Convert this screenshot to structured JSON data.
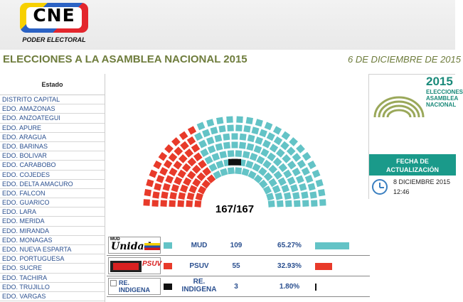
{
  "header": {
    "logo_text": "CNE",
    "logo_subtitle": "PODER ELECTORAL",
    "title": "ELECCIONES A LA ASAMBLEA NACIONAL 2015",
    "date": "6 DE DICIEMBRE DE 2015"
  },
  "states": {
    "heading": "Estado",
    "items": [
      "DISTRITO CAPITAL",
      "EDO. AMAZONAS",
      "EDO. ANZOATEGUI",
      "EDO. APURE",
      "EDO. ARAGUA",
      "EDO. BARINAS",
      "EDO. BOLIVAR",
      "EDO. CARABOBO",
      "EDO. COJEDES",
      "EDO. DELTA AMACURO",
      "EDO. FALCON",
      "EDO. GUARICO",
      "EDO. LARA",
      "EDO. MERIDA",
      "EDO. MIRANDA",
      "EDO. MONAGAS",
      "EDO. NUEVA ESPARTA",
      "EDO. PORTUGUESA",
      "EDO. SUCRE",
      "EDO. TACHIRA",
      "EDO. TRUJILLO",
      "EDO. VARGAS"
    ]
  },
  "chamber": {
    "seat_count_label": "167/167",
    "total_seats": 167,
    "colors": {
      "MUD": "#63c3c6",
      "PSUV": "#e83a2a",
      "INDIGENA": "#111111"
    }
  },
  "results": [
    {
      "logo_line1": "MUD",
      "logo_line2": "Unidad",
      "name": "MUD",
      "seats": "109",
      "pct": "65.27%",
      "share": 0.6527,
      "color": "#63c3c6"
    },
    {
      "logo_line1": "PSUV",
      "logo_line2": "",
      "name": "PSUV",
      "seats": "55",
      "pct": "32.93%",
      "share": 0.3293,
      "color": "#e83a2a"
    },
    {
      "logo_line1": "RE.",
      "logo_line2": "INDIGENA",
      "name_line1": "RE.",
      "name_line2": "INDIGENA",
      "seats": "3",
      "pct": "1.80%",
      "share": 0.018,
      "color": "#111111"
    }
  ],
  "side_card": {
    "year": "2015",
    "sub1": "ELECCIONES",
    "sub2": "ASAMBLEA",
    "sub3": "NACIONAL",
    "heading_line1": "FECHA DE",
    "heading_line2": "ACTUALIZACIÓN",
    "update_date": "8 DICIEMBRE 2015",
    "update_time": "12:46"
  }
}
